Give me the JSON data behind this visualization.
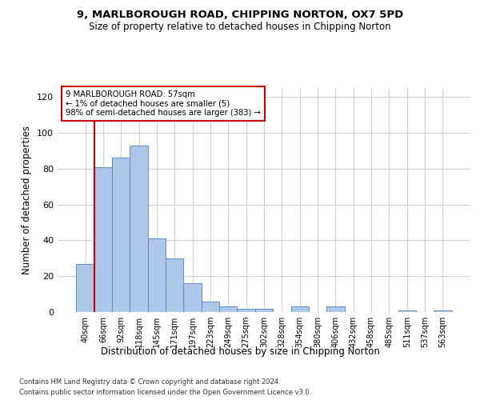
{
  "title": "9, MARLBOROUGH ROAD, CHIPPING NORTON, OX7 5PD",
  "subtitle": "Size of property relative to detached houses in Chipping Norton",
  "xlabel": "Distribution of detached houses by size in Chipping Norton",
  "ylabel": "Number of detached properties",
  "bar_labels": [
    "40sqm",
    "66sqm",
    "92sqm",
    "118sqm",
    "145sqm",
    "171sqm",
    "197sqm",
    "223sqm",
    "249sqm",
    "275sqm",
    "302sqm",
    "328sqm",
    "354sqm",
    "380sqm",
    "406sqm",
    "432sqm",
    "458sqm",
    "485sqm",
    "511sqm",
    "537sqm",
    "563sqm"
  ],
  "bar_values": [
    27,
    81,
    86,
    93,
    41,
    30,
    16,
    6,
    3,
    2,
    2,
    0,
    3,
    0,
    3,
    0,
    0,
    0,
    1,
    0,
    1
  ],
  "bar_color": "#aec6e8",
  "bar_edge_color": "#5a8fc2",
  "vline_color": "#cc0000",
  "annotation_text": "9 MARLBOROUGH ROAD: 57sqm\n← 1% of detached houses are smaller (5)\n98% of semi-detached houses are larger (383) →",
  "annotation_box_color": "#ffffff",
  "annotation_box_edge": "#cc0000",
  "ylim": [
    0,
    125
  ],
  "yticks": [
    0,
    20,
    40,
    60,
    80,
    100,
    120
  ],
  "footer1": "Contains HM Land Registry data © Crown copyright and database right 2024.",
  "footer2": "Contains public sector information licensed under the Open Government Licence v3.0.",
  "bg_color": "#ffffff",
  "grid_color": "#d0d0d0"
}
